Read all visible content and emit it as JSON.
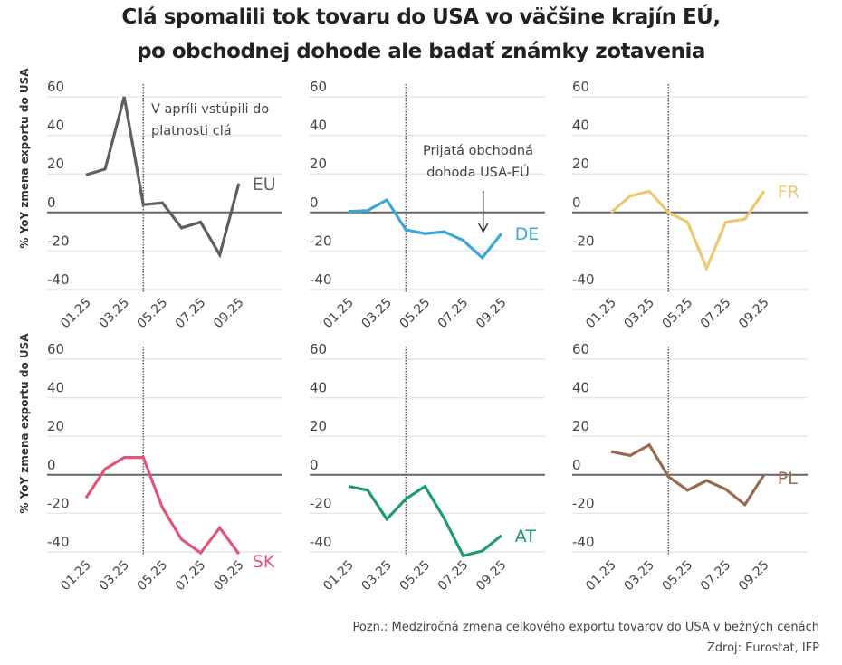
{
  "title": [
    "Clá spomalili tok tovaru do USA vo väčšine krajín EÚ,",
    "po obchodnej dohode ale badať známky zotavenia"
  ],
  "note": "Pozn.: Medziročná zmena celkového exportu tovarov do USA v bežných cenách",
  "source": "Zdroj: Eurostat, IFP",
  "chart_data": [
    {
      "type": "line",
      "series": [
        {
          "name": "EU",
          "color": "#5f5f5f",
          "values": [
            19.5,
            22.5,
            60,
            4,
            5,
            -8,
            -5,
            -22,
            15
          ]
        }
      ],
      "ylabel": "% YoY zmena exportu do USA",
      "categories": [
        "01.25",
        "02.25",
        "03.25",
        "04.25",
        "05.25",
        "06.25",
        "07.25",
        "08.25",
        "09.25"
      ],
      "xticks": [
        "01.25",
        "03.25",
        "05.25",
        "07.25",
        "09.25"
      ],
      "yticks": [
        60,
        40,
        20,
        0,
        -20,
        -40
      ],
      "ylim": [
        -40,
        60
      ],
      "grid": true,
      "vline": "04.25",
      "annotation": [
        "V apríli vstúpili do",
        "platnosti clá"
      ]
    },
    {
      "type": "line",
      "series": [
        {
          "name": "DE",
          "color": "#3aa8d8",
          "values": [
            0.5,
            1,
            6.5,
            -9,
            -11,
            -10,
            -14.5,
            -23.5,
            -11
          ]
        }
      ],
      "ylabel": "",
      "categories": [
        "01.25",
        "02.25",
        "03.25",
        "04.25",
        "05.25",
        "06.25",
        "07.25",
        "08.25",
        "09.25"
      ],
      "xticks": [
        "01.25",
        "03.25",
        "05.25",
        "07.25",
        "09.25"
      ],
      "yticks": [
        60,
        40,
        20,
        0,
        -20,
        -40
      ],
      "ylim": [
        -40,
        60
      ],
      "grid": true,
      "vline": "04.25",
      "annotation": [
        "Prijatá obchodná",
        "dohoda USA-EÚ"
      ],
      "arrow_at": "08.25"
    },
    {
      "type": "line",
      "series": [
        {
          "name": "FR",
          "color": "#ecc872",
          "values": [
            0,
            8.5,
            11,
            0,
            -5,
            -29,
            -5,
            -3.5,
            11
          ]
        }
      ],
      "ylabel": "",
      "categories": [
        "01.25",
        "02.25",
        "03.25",
        "04.25",
        "05.25",
        "06.25",
        "07.25",
        "08.25",
        "09.25"
      ],
      "xticks": [
        "01.25",
        "03.25",
        "05.25",
        "07.25",
        "09.25"
      ],
      "yticks": [
        60,
        40,
        20,
        0,
        -20,
        -40
      ],
      "ylim": [
        -40,
        60
      ],
      "grid": true,
      "vline": "04.25"
    },
    {
      "type": "line",
      "series": [
        {
          "name": "SK",
          "color": "#e05578",
          "values": [
            -12,
            3,
            9,
            9,
            -17,
            -33.5,
            -40.5,
            -27.5,
            -41
          ]
        }
      ],
      "ylabel": "% YoY zmena exportu do USA",
      "categories": [
        "01.25",
        "02.25",
        "03.25",
        "04.25",
        "05.25",
        "06.25",
        "07.25",
        "08.25",
        "09.25"
      ],
      "xticks": [
        "01.25",
        "03.25",
        "05.25",
        "07.25",
        "09.25"
      ],
      "yticks": [
        60,
        40,
        20,
        0,
        -20,
        -40
      ],
      "ylim": [
        -40,
        60
      ],
      "grid": true,
      "vline": "04.25"
    },
    {
      "type": "line",
      "series": [
        {
          "name": "AT",
          "color": "#1f9a78",
          "values": [
            -6,
            -8,
            -23,
            -12.5,
            -6,
            -22.5,
            -42,
            -39.5,
            -31.5
          ]
        }
      ],
      "ylabel": "",
      "categories": [
        "01.25",
        "02.25",
        "03.25",
        "04.25",
        "05.25",
        "06.25",
        "07.25",
        "08.25",
        "09.25"
      ],
      "xticks": [
        "01.25",
        "03.25",
        "05.25",
        "07.25",
        "09.25"
      ],
      "yticks": [
        60,
        40,
        20,
        0,
        -20,
        -40
      ],
      "ylim": [
        -40,
        60
      ],
      "grid": true,
      "vline": "04.25"
    },
    {
      "type": "line",
      "series": [
        {
          "name": "PL",
          "color": "#9a6a50",
          "values": [
            12,
            10,
            15.5,
            -1,
            -8,
            -3,
            -7.5,
            -15.5,
            0
          ]
        }
      ],
      "ylabel": "",
      "categories": [
        "01.25",
        "02.25",
        "03.25",
        "04.25",
        "05.25",
        "06.25",
        "07.25",
        "08.25",
        "09.25"
      ],
      "xticks": [
        "01.25",
        "03.25",
        "05.25",
        "07.25",
        "09.25"
      ],
      "yticks": [
        60,
        40,
        20,
        0,
        -20,
        -40
      ],
      "ylim": [
        -40,
        60
      ],
      "grid": true,
      "vline": "04.25"
    }
  ]
}
